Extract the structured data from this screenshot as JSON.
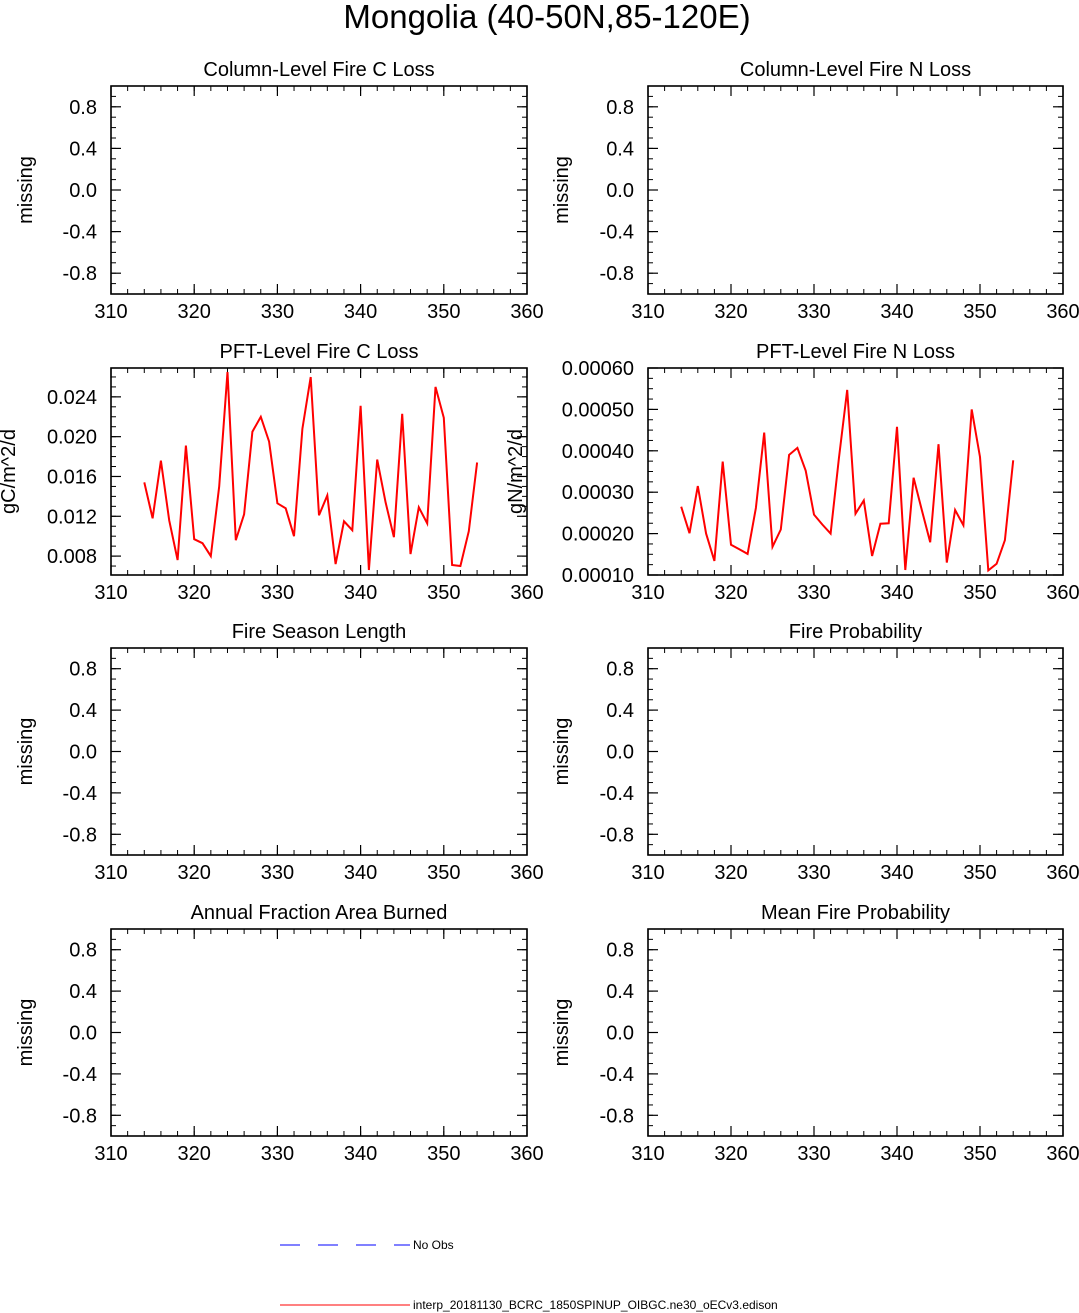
{
  "title": "Mongolia (40-50N,85-120E)",
  "colors": {
    "model": "#ff0000",
    "obs": "#0000ff",
    "axes": "#000000"
  },
  "legend": {
    "obs_label": "No Obs",
    "model_label": "interp_20181130_BCRC_1850SPINUP_OIBGC.ne30_oECv3.edison"
  },
  "chart_data": [
    {
      "type": "line",
      "title": "Column-Level Fire C Loss",
      "ylabel": "missing",
      "xlim": [
        310,
        360
      ],
      "ylim": [
        -1,
        1
      ],
      "xticks": [
        310,
        320,
        330,
        340,
        350,
        360
      ],
      "xtick_labels": [
        "310",
        "320",
        "330",
        "340",
        "350",
        "360"
      ],
      "yticks": [
        0.8,
        0.4,
        0.0,
        -0.4,
        -0.8
      ],
      "ytick_labels": [
        "0.8",
        "0.4",
        "0.0",
        "-0.4",
        "-0.8"
      ],
      "series": []
    },
    {
      "type": "line",
      "title": "Column-Level Fire N Loss",
      "ylabel": "missing",
      "xlim": [
        310,
        360
      ],
      "ylim": [
        -1,
        1
      ],
      "xticks": [
        310,
        320,
        330,
        340,
        350,
        360
      ],
      "xtick_labels": [
        "310",
        "320",
        "330",
        "340",
        "350",
        "360"
      ],
      "yticks": [
        0.8,
        0.4,
        0.0,
        -0.4,
        -0.8
      ],
      "ytick_labels": [
        "0.8",
        "0.4",
        "0.0",
        "-0.4",
        "-0.8"
      ],
      "series": []
    },
    {
      "type": "line",
      "title": "PFT-Level Fire C Loss",
      "ylabel": "gC/m^2/d",
      "xlim": [
        310,
        360
      ],
      "ylim": [
        0.0061,
        0.0269
      ],
      "xticks": [
        310,
        320,
        330,
        340,
        350,
        360
      ],
      "xtick_labels": [
        "310",
        "320",
        "330",
        "340",
        "350",
        "360"
      ],
      "yticks": [
        0.024,
        0.02,
        0.016,
        0.012,
        0.008
      ],
      "ytick_labels": [
        "0.024",
        "0.020",
        "0.016",
        "0.012",
        "0.008"
      ],
      "series": [
        {
          "x": [
            314,
            315,
            316,
            317,
            318,
            319,
            320,
            321,
            322,
            323,
            324,
            325,
            326,
            327,
            328,
            329,
            330,
            331,
            332,
            333,
            334,
            335,
            336,
            337,
            338,
            339,
            340,
            341,
            342,
            343,
            344,
            345,
            346,
            347,
            348,
            349,
            350,
            351,
            352,
            353,
            354
          ],
          "y": [
            0.0154,
            0.0118,
            0.0176,
            0.0116,
            0.0076,
            0.0191,
            0.0097,
            0.0093,
            0.008,
            0.015,
            0.0265,
            0.0096,
            0.0122,
            0.0205,
            0.022,
            0.0195,
            0.0133,
            0.0128,
            0.01,
            0.0208,
            0.026,
            0.0121,
            0.0141,
            0.0072,
            0.0115,
            0.0106,
            0.0231,
            0.0066,
            0.0177,
            0.0134,
            0.0099,
            0.0223,
            0.0082,
            0.0129,
            0.0113,
            0.025,
            0.0219,
            0.0071,
            0.007,
            0.0105,
            0.0174
          ]
        }
      ]
    },
    {
      "type": "line",
      "title": "PFT-Level Fire N Loss",
      "ylabel": "gN/m^2/d",
      "xlim": [
        310,
        360
      ],
      "ylim": [
        0.0001,
        0.0006
      ],
      "xticks": [
        310,
        320,
        330,
        340,
        350,
        360
      ],
      "xtick_labels": [
        "310",
        "320",
        "330",
        "340",
        "350",
        "360"
      ],
      "yticks": [
        0.0006,
        0.0005,
        0.0004,
        0.0003,
        0.0002,
        0.0001
      ],
      "ytick_labels": [
        "0.00060",
        "0.00050",
        "0.00040",
        "0.00030",
        "0.00020",
        "0.00010"
      ],
      "series": [
        {
          "x": [
            314,
            315,
            316,
            317,
            318,
            319,
            320,
            321,
            322,
            323,
            324,
            325,
            326,
            327,
            328,
            329,
            330,
            331,
            332,
            333,
            334,
            335,
            336,
            337,
            338,
            339,
            340,
            341,
            342,
            343,
            344,
            345,
            346,
            347,
            348,
            349,
            350,
            351,
            352,
            353,
            354
          ],
          "y": [
            0.000265,
            0.000201,
            0.000315,
            0.0002,
            0.000134,
            0.000374,
            0.000173,
            0.000162,
            0.000151,
            0.000262,
            0.000444,
            0.000168,
            0.00021,
            0.00039,
            0.000407,
            0.000352,
            0.000246,
            0.000222,
            0.0002,
            0.000382,
            0.000547,
            0.000248,
            0.00028,
            0.000146,
            0.000224,
            0.000225,
            0.000458,
            0.000112,
            0.000335,
            0.000256,
            0.000179,
            0.000416,
            0.00013,
            0.000257,
            0.00022,
            0.0005,
            0.000385,
            0.000111,
            0.000127,
            0.000184,
            0.000377
          ]
        }
      ]
    },
    {
      "type": "line",
      "title": "Fire Season Length",
      "ylabel": "missing",
      "xlim": [
        310,
        360
      ],
      "ylim": [
        -1,
        1
      ],
      "xticks": [
        310,
        320,
        330,
        340,
        350,
        360
      ],
      "xtick_labels": [
        "310",
        "320",
        "330",
        "340",
        "350",
        "360"
      ],
      "yticks": [
        0.8,
        0.4,
        0.0,
        -0.4,
        -0.8
      ],
      "ytick_labels": [
        "0.8",
        "0.4",
        "0.0",
        "-0.4",
        "-0.8"
      ],
      "series": []
    },
    {
      "type": "line",
      "title": "Fire Probability",
      "ylabel": "missing",
      "xlim": [
        310,
        360
      ],
      "ylim": [
        -1,
        1
      ],
      "xticks": [
        310,
        320,
        330,
        340,
        350,
        360
      ],
      "xtick_labels": [
        "310",
        "320",
        "330",
        "340",
        "350",
        "360"
      ],
      "yticks": [
        0.8,
        0.4,
        0.0,
        -0.4,
        -0.8
      ],
      "ytick_labels": [
        "0.8",
        "0.4",
        "0.0",
        "-0.4",
        "-0.8"
      ],
      "series": []
    },
    {
      "type": "line",
      "title": "Annual Fraction Area Burned",
      "ylabel": "missing",
      "xlim": [
        310,
        360
      ],
      "ylim": [
        -1,
        1
      ],
      "xticks": [
        310,
        320,
        330,
        340,
        350,
        360
      ],
      "xtick_labels": [
        "310",
        "320",
        "330",
        "340",
        "350",
        "360"
      ],
      "yticks": [
        0.8,
        0.4,
        0.0,
        -0.4,
        -0.8
      ],
      "ytick_labels": [
        "0.8",
        "0.4",
        "0.0",
        "-0.4",
        "-0.8"
      ],
      "series": []
    },
    {
      "type": "line",
      "title": "Mean Fire Probability",
      "ylabel": "missing",
      "xlim": [
        310,
        360
      ],
      "ylim": [
        -1,
        1
      ],
      "xticks": [
        310,
        320,
        330,
        340,
        350,
        360
      ],
      "xtick_labels": [
        "310",
        "320",
        "330",
        "340",
        "350",
        "360"
      ],
      "yticks": [
        0.8,
        0.4,
        0.0,
        -0.4,
        -0.8
      ],
      "ytick_labels": [
        "0.8",
        "0.4",
        "0.0",
        "-0.4",
        "-0.8"
      ],
      "series": []
    }
  ]
}
